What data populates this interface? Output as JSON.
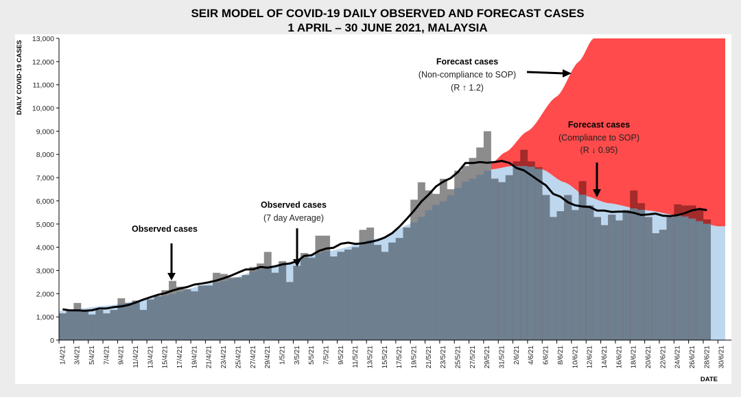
{
  "chart_data": {
    "type": "bar",
    "title": "SEIR MODEL OF COVID-19 DAILY OBSERVED AND FORECAST CASES",
    "subtitle": "1 APRIL – 30 JUNE 2021, MALAYSIA",
    "xlabel": "DATE",
    "ylabel": "DAILY COVID-19 CASES",
    "ylim": [
      0,
      13000
    ],
    "yticks": [
      "0",
      "1,000",
      "2,000",
      "3,000",
      "4,000",
      "5,000",
      "6,000",
      "7,000",
      "8,000",
      "9,000",
      "10,000",
      "11,000",
      "12,000",
      "13,000"
    ],
    "xticks": [
      "1/4/21",
      "3/4/21",
      "5/4/21",
      "7/4/21",
      "9/4/21",
      "11/4/21",
      "13/4/21",
      "15/4/21",
      "17/4/21",
      "19/4/21",
      "21/4/21",
      "23/4/21",
      "25/4/21",
      "27/4/21",
      "29/4/21",
      "1/5/21",
      "3/5/21",
      "5/5/21",
      "7/5/21",
      "9/5/21",
      "11/5/21",
      "13/5/21",
      "15/5/21",
      "17/5/21",
      "19/5/21",
      "21/5/21",
      "23/5/21",
      "25/5/21",
      "27/5/21",
      "29/5/21",
      "31/5/21",
      "2/6/21",
      "4/6/21",
      "6/6/21",
      "8/6/21",
      "10/6/21",
      "12/6/21",
      "14/6/21",
      "16/6/21",
      "18/6/21",
      "20/6/21",
      "22/6/21",
      "24/6/21",
      "26/6/21",
      "28/6/21",
      "30/6/21"
    ],
    "days_total": 91,
    "forecast_start_day": 59,
    "series": [
      {
        "name": "Observed cases",
        "type": "bar",
        "start": "1/4/21",
        "values": [
          1150,
          1250,
          1600,
          1300,
          1100,
          1300,
          1150,
          1300,
          1800,
          1600,
          1700,
          1300,
          1750,
          1900,
          2150,
          2550,
          2300,
          2200,
          2100,
          2350,
          2350,
          2900,
          2850,
          2700,
          2700,
          2800,
          3150,
          3300,
          3800,
          2900,
          3400,
          2500,
          3200,
          3750,
          3550,
          4500,
          4500,
          3600,
          3800,
          3900,
          4000,
          4750,
          4850,
          4100,
          3800,
          4200,
          4400,
          4850,
          6050,
          6800,
          6450,
          6300,
          6950,
          6500,
          7300,
          7500,
          7850,
          8300,
          9000,
          6950,
          6800,
          7100,
          7700,
          8200,
          7700,
          7450,
          6250,
          5300,
          5550,
          6250,
          5600,
          6850,
          5800,
          5300,
          4950,
          5400,
          5150,
          5600,
          6450,
          5900,
          5300,
          4600,
          4750,
          5300,
          5850,
          5800,
          5800,
          5600,
          5200
        ]
      },
      {
        "name": "Observed cases (7 day Average)",
        "type": "line",
        "window": 7
      },
      {
        "name": "Forecast cases (Compliance to SOP) (R ↓ 0.95)",
        "type": "area",
        "points": [
          [
            0,
            1250
          ],
          [
            7,
            1500
          ],
          [
            14,
            1900
          ],
          [
            21,
            2450
          ],
          [
            30,
            3250
          ],
          [
            37,
            3850
          ],
          [
            44,
            4400
          ],
          [
            48,
            5000
          ],
          [
            52,
            5900
          ],
          [
            56,
            6900
          ],
          [
            59,
            7350
          ],
          [
            62,
            7500
          ],
          [
            64,
            7500
          ],
          [
            66,
            7350
          ],
          [
            69,
            6800
          ],
          [
            72,
            6200
          ],
          [
            75,
            5900
          ],
          [
            80,
            5600
          ],
          [
            85,
            5350
          ],
          [
            90,
            4900
          ]
        ]
      },
      {
        "name": "Forecast cases (Non-compliance to SOP) (R ↑ 1.2)",
        "type": "area",
        "points": [
          [
            59,
            7600
          ],
          [
            61,
            8100
          ],
          [
            64,
            9000
          ],
          [
            68,
            10500
          ],
          [
            71,
            12000
          ],
          [
            73,
            13000
          ],
          [
            90,
            13000
          ]
        ]
      }
    ],
    "annotations": {
      "observed": "Observed cases",
      "avg_title": "Observed cases",
      "avg_sub": "(7 day Average)",
      "noncomp_title": "Forecast cases",
      "noncomp_sub": "(Non-compliance to SOP)",
      "noncomp_r": "(R ↑ 1.2)",
      "comp_title": "Forecast cases",
      "comp_sub": "(Compliance to SOP)",
      "comp_r": "(R ↓ 0.95)"
    },
    "colors": {
      "bar": "#8c8c8c",
      "overlap": "#6e7f90",
      "model": "#bdd7ee",
      "red": "#ff4b4b",
      "bar_red": "#a52a2a"
    }
  }
}
